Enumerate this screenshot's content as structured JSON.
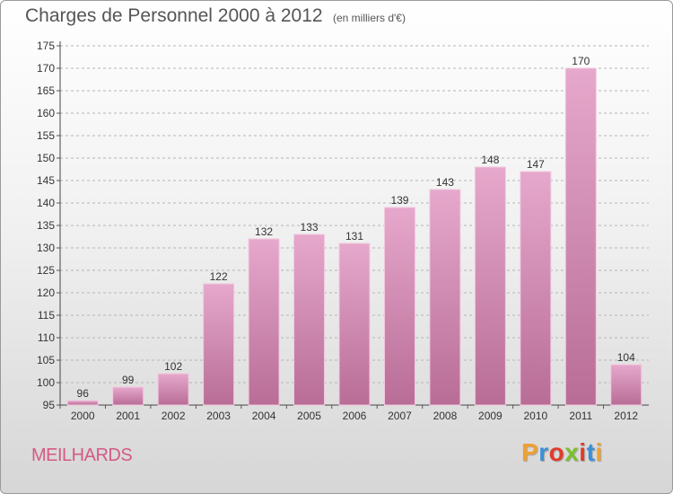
{
  "title": "Charges de Personnel 2000 à 2012",
  "subtitle": "(en milliers d'€)",
  "location": "MEILHARDS",
  "brand": {
    "text": "Proxiti",
    "letter_colors": [
      "#f0a030",
      "#3a8fd8",
      "#e23a2a",
      "#7bbf2e",
      "#e23a2a",
      "#3a8fd8",
      "#f0a030"
    ]
  },
  "colors": {
    "bar_top": "#e6a8cc",
    "bar_bottom": "#b86d96",
    "bar_edge": "#f2c9de",
    "location": "#d45a86"
  },
  "chart_data": {
    "type": "bar",
    "title": "Charges de Personnel 2000 à 2012",
    "subtitle": "(en milliers d'€)",
    "categories": [
      "2000",
      "2001",
      "2002",
      "2003",
      "2004",
      "2005",
      "2006",
      "2007",
      "2008",
      "2009",
      "2010",
      "2011",
      "2012"
    ],
    "values": [
      96,
      99,
      102,
      122,
      132,
      133,
      131,
      139,
      143,
      148,
      147,
      170,
      104
    ],
    "ylim": [
      95,
      175
    ],
    "yticks": [
      95,
      100,
      105,
      110,
      115,
      120,
      125,
      130,
      135,
      140,
      145,
      150,
      155,
      160,
      165,
      170,
      175
    ],
    "grid": true
  }
}
